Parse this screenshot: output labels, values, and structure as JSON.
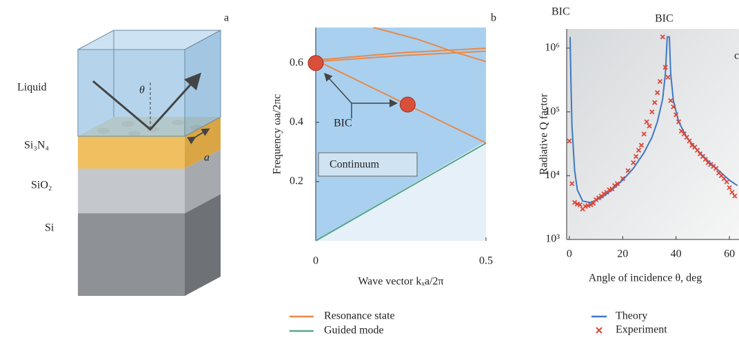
{
  "diagram": {
    "panel_label": "a",
    "layers": [
      "Liquid",
      "Si₃N₄",
      "SiO₂",
      "Si"
    ],
    "angle": "θ",
    "period": "a"
  },
  "chart_data": [
    {
      "type": "line",
      "panel_label": "b",
      "x_label": "Wave vector kₓa/2π",
      "y_label": "Frequency ωa/2πc",
      "xlim": [
        0,
        0.5
      ],
      "ylim": [
        0,
        0.72
      ],
      "xticks": [
        0,
        0.5
      ],
      "yticks": [
        0.2,
        0.4,
        0.6
      ],
      "annotations": [
        "BIC",
        "Continuum"
      ],
      "series": [
        {
          "name": "Resonance state",
          "color": "#e8894a",
          "lines": [
            {
              "x": [
                0,
                0.5
              ],
              "y": [
                0.61,
                0.33
              ]
            },
            {
              "x": [
                0,
                0.25,
                0.5
              ],
              "y": [
                0.61,
                0.635,
                0.65
              ]
            },
            {
              "x": [
                0,
                0.25,
                0.5
              ],
              "y": [
                0.605,
                0.625,
                0.64
              ]
            },
            {
              "x": [
                0.17,
                0.3,
                0.4,
                0.5
              ],
              "y": [
                0.72,
                0.68,
                0.64,
                0.605
              ]
            }
          ]
        },
        {
          "name": "Guided mode",
          "color": "#5aa58a",
          "lines": [
            {
              "x": [
                0,
                0.5
              ],
              "y": [
                0,
                0.33
              ]
            }
          ]
        }
      ],
      "points": {
        "color": "#d9503a",
        "x": [
          0,
          0.27
        ],
        "y": [
          0.6,
          0.46
        ]
      }
    },
    {
      "type": "scatter",
      "panel_label": "c",
      "yscale": "log",
      "x_label": "Angle of incidence θ, deg",
      "y_label": "Radiative Q factor",
      "xlim": [
        -1,
        63.6
      ],
      "ylim": [
        1000,
        2000000
      ],
      "xticks": [
        0,
        20,
        40,
        60
      ],
      "yticks": [
        {
          "value": 1000,
          "label": "10³"
        },
        {
          "value": 10000,
          "label": "10⁴"
        },
        {
          "value": 100000,
          "label": "10⁵"
        },
        {
          "value": 1000000,
          "label": "10⁶"
        }
      ],
      "annotations": [
        "BIC",
        "BIC"
      ],
      "series": [
        {
          "name": "Theory",
          "type": "line",
          "color": "#3d78c4",
          "x": [
            0.3,
            0.6,
            1,
            2,
            3,
            5,
            8,
            12,
            16,
            20,
            24,
            28,
            31,
            33,
            35,
            36,
            36.7,
            37.5,
            38,
            39,
            41,
            44,
            48,
            52,
            56,
            60,
            63
          ],
          "values": [
            1500000,
            300000,
            60000,
            12000,
            6000,
            4000,
            3800,
            4500,
            6000,
            8500,
            13000,
            23000,
            40000,
            70000,
            160000,
            400000,
            1500000,
            1500000,
            400000,
            150000,
            70000,
            40000,
            25000,
            17000,
            12000,
            8500,
            7000
          ]
        },
        {
          "name": "Experiment",
          "type": "scatter",
          "color": "#d9473a",
          "x": [
            0,
            1,
            2,
            3,
            4,
            5,
            6,
            7,
            8,
            9,
            10,
            11,
            12,
            13,
            14,
            15,
            16,
            17,
            18,
            20,
            22,
            24,
            25,
            26,
            27,
            28,
            29,
            30,
            31,
            32,
            33,
            34,
            35,
            36,
            37,
            38,
            39,
            40,
            41,
            42,
            43,
            44,
            45,
            46,
            47,
            48,
            49,
            50,
            51,
            52,
            53,
            54,
            55,
            56,
            57,
            58,
            59,
            60,
            61,
            62
          ],
          "values": [
            35000,
            7500,
            3800,
            3600,
            3500,
            3000,
            3300,
            3400,
            3500,
            3700,
            4200,
            4500,
            4800,
            5200,
            5500,
            6000,
            6200,
            7000,
            7500,
            9000,
            12000,
            16000,
            20000,
            25000,
            30000,
            45000,
            70000,
            60000,
            100000,
            140000,
            200000,
            300000,
            1500000,
            500000,
            350000,
            150000,
            120000,
            90000,
            70000,
            50000,
            45000,
            40000,
            35000,
            30000,
            28000,
            25000,
            22000,
            20000,
            18000,
            16000,
            15000,
            14000,
            13000,
            11000,
            10000,
            9000,
            8000,
            6500,
            5500,
            4800
          ]
        }
      ]
    }
  ]
}
